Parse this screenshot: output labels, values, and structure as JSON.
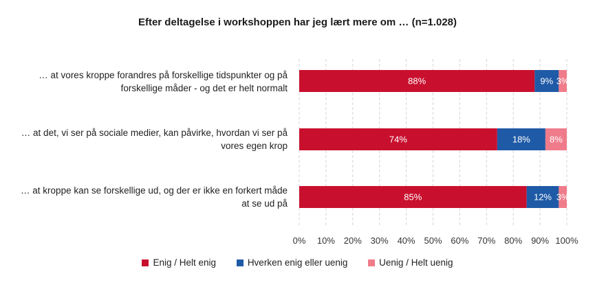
{
  "chart_data": {
    "type": "bar",
    "orientation": "horizontal",
    "stacked": "percent",
    "title": "Efter deltagelse i workshoppen har jeg lært mere om … (n=1.028)",
    "categories": [
      "… at vores kroppe forandres på forskellige tidspunkter og på forskellige måder - og det er helt normalt",
      "… at det, vi ser på sociale medier, kan påvirke, hvordan vi ser på vores egen krop",
      "… at kroppe kan se forskellige ud, og der er ikke en forkert måde at se ud på"
    ],
    "series": [
      {
        "name": "Enig / Helt enig",
        "color": "#C8102E",
        "values": [
          88,
          74,
          85
        ],
        "labels": [
          "88%",
          "74%",
          "85%"
        ]
      },
      {
        "name": "Hverken enig eller uenig",
        "color": "#1F5AA6",
        "values": [
          9,
          18,
          12
        ],
        "labels": [
          "9%",
          "18%",
          "12%"
        ]
      },
      {
        "name": "Uenig / Helt uenig",
        "color": "#F07C8B",
        "values": [
          3,
          8,
          3
        ],
        "labels": [
          "3%",
          "8%",
          "3%"
        ]
      }
    ],
    "xlim": [
      0,
      100
    ],
    "x_ticks": [
      "0%",
      "10%",
      "20%",
      "30%",
      "40%",
      "50%",
      "60%",
      "70%",
      "80%",
      "90%",
      "100%"
    ],
    "grid": true,
    "legend_position": "bottom"
  }
}
